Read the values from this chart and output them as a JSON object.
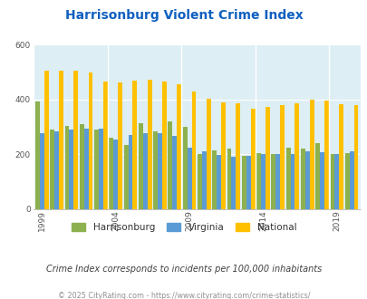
{
  "title": "Harrisonburg Violent Crime Index",
  "subtitle": "Crime Index corresponds to incidents per 100,000 inhabitants",
  "footer": "© 2025 CityRating.com - https://www.cityrating.com/crime-statistics/",
  "years": [
    1999,
    2000,
    2001,
    2002,
    2003,
    2004,
    2005,
    2006,
    2007,
    2008,
    2009,
    2010,
    2011,
    2012,
    2013,
    2014,
    2015,
    2016,
    2017,
    2018,
    2019,
    2020
  ],
  "harrisonburg": [
    393,
    290,
    305,
    310,
    290,
    260,
    235,
    315,
    285,
    320,
    300,
    200,
    215,
    220,
    195,
    205,
    200,
    225,
    220,
    240,
    200,
    205
  ],
  "virginia": [
    278,
    285,
    292,
    295,
    295,
    255,
    270,
    278,
    278,
    268,
    226,
    212,
    198,
    193,
    196,
    200,
    200,
    202,
    210,
    208,
    202,
    210
  ],
  "national": [
    507,
    507,
    507,
    498,
    465,
    463,
    470,
    474,
    467,
    455,
    430,
    404,
    390,
    388,
    368,
    375,
    380,
    388,
    400,
    398,
    384,
    380
  ],
  "bar_colors": {
    "harrisonburg": "#8db14e",
    "virginia": "#5b9bd5",
    "national": "#ffc000"
  },
  "ylim": [
    0,
    600
  ],
  "yticks": [
    0,
    200,
    400,
    600
  ],
  "plot_bg": "#ddeef5",
  "title_color": "#1060c0",
  "subtitle_color": "#404040",
  "footer_color": "#909090",
  "legend_colors": {
    "Harrisonburg": "#8db14e",
    "Virginia": "#5b9bd5",
    "National": "#ffc000"
  },
  "xtick_years": [
    1999,
    2004,
    2009,
    2014,
    2019
  ]
}
